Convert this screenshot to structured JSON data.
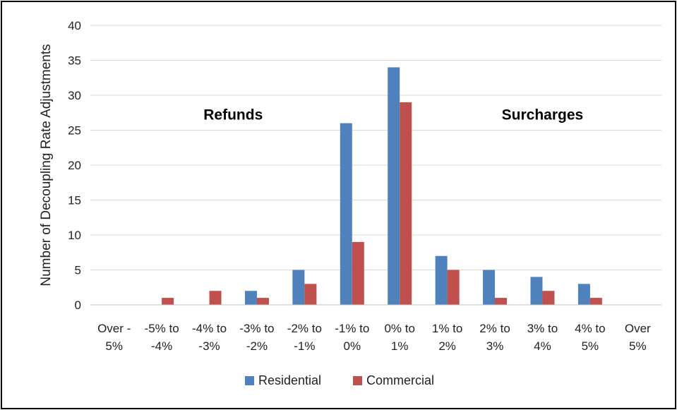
{
  "chart_data": {
    "type": "bar",
    "ylabel": "Number of Decoupling Rate Adjustments",
    "xlabel": "",
    "ylim": [
      0,
      40
    ],
    "yticks": [
      0,
      5,
      10,
      15,
      20,
      25,
      30,
      35,
      40
    ],
    "grid": true,
    "legend_position": "bottom",
    "categories": [
      [
        "Over -",
        "5%"
      ],
      [
        "-5% to",
        "-4%"
      ],
      [
        "-4% to",
        "-3%"
      ],
      [
        "-3% to",
        "-2%"
      ],
      [
        "-2% to",
        "-1%"
      ],
      [
        "-1% to",
        "0%"
      ],
      [
        "0% to",
        "1%"
      ],
      [
        "1% to",
        "2%"
      ],
      [
        "2% to",
        "3%"
      ],
      [
        "3% to",
        "4%"
      ],
      [
        "4% to",
        "5%"
      ],
      [
        "Over",
        "5%"
      ]
    ],
    "series": [
      {
        "name": "Residential",
        "color": "#4F81BD",
        "values": [
          0,
          0,
          0,
          2,
          5,
          26,
          34,
          7,
          5,
          4,
          3,
          0
        ]
      },
      {
        "name": "Commercial",
        "color": "#C0504D",
        "values": [
          0,
          1,
          2,
          1,
          3,
          9,
          29,
          5,
          1,
          2,
          1,
          0
        ]
      }
    ],
    "annotations": [
      {
        "text": "Refunds",
        "anchor_category": 3.0,
        "anchor_value": 26.5
      },
      {
        "text": "Surcharges",
        "anchor_category": 9.5,
        "anchor_value": 26.5
      }
    ]
  }
}
